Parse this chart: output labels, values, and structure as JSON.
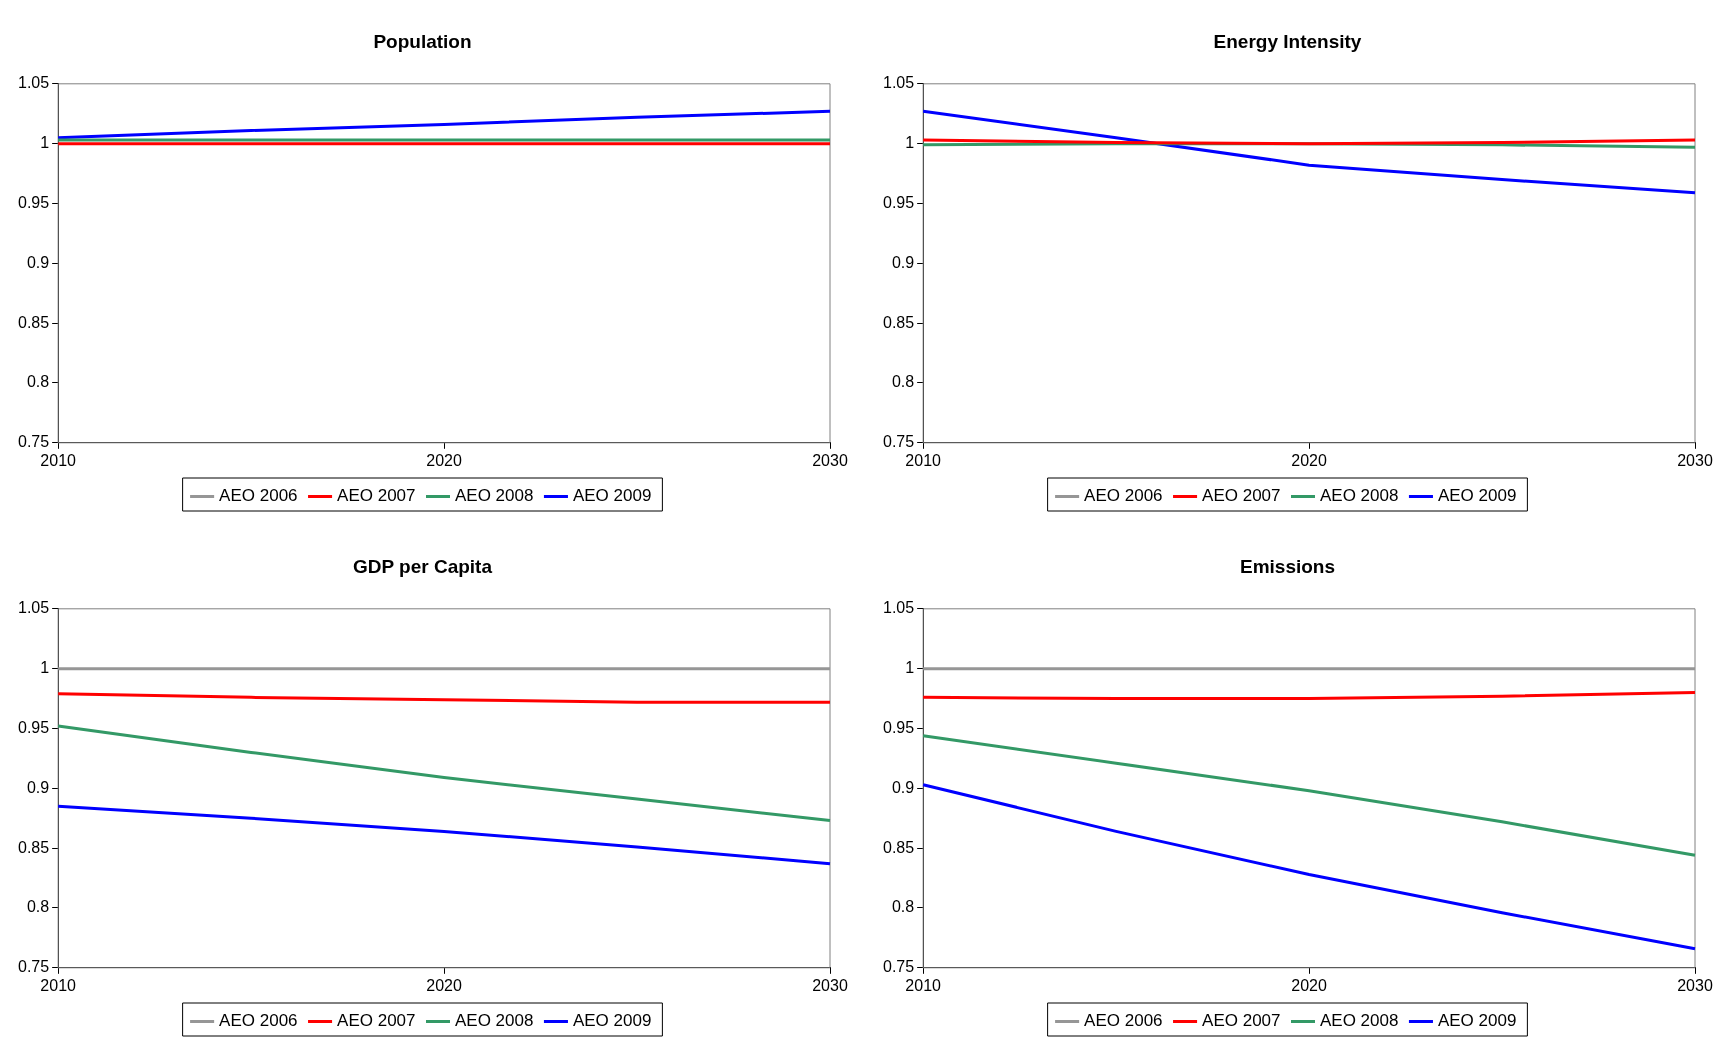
{
  "chart_data": [
    {
      "type": "line",
      "title": "Population",
      "x": [
        2010,
        2015,
        2020,
        2025,
        2030
      ],
      "xlim": [
        2010,
        2030
      ],
      "xticks": [
        2010,
        2020,
        2030
      ],
      "ylim": [
        0.75,
        1.05
      ],
      "yticks": [
        0.75,
        0.8,
        0.85,
        0.9,
        0.95,
        1,
        1.05
      ],
      "legend": "bottom",
      "series": [
        {
          "name": "AEO 2006",
          "color": "#969696",
          "values": [
            null,
            null,
            null,
            null,
            null
          ]
        },
        {
          "name": "AEO 2007",
          "color": "#ff0000",
          "values": [
            1,
            1,
            1,
            1,
            1
          ]
        },
        {
          "name": "AEO 2008",
          "color": "#339966",
          "values": [
            1.003,
            1.003,
            1.003,
            1.003,
            1.003
          ]
        },
        {
          "name": "AEO 2009",
          "color": "#0000ff",
          "values": [
            1.005,
            1.011,
            1.016,
            1.022,
            1.027
          ]
        }
      ]
    },
    {
      "type": "line",
      "title": "Energy Intensity",
      "x": [
        2010,
        2015,
        2020,
        2025,
        2030
      ],
      "xlim": [
        2010,
        2030
      ],
      "xticks": [
        2010,
        2020,
        2030
      ],
      "ylim": [
        0.75,
        1.05
      ],
      "yticks": [
        0.75,
        0.8,
        0.85,
        0.9,
        0.95,
        1,
        1.05
      ],
      "legend": "bottom",
      "series": [
        {
          "name": "AEO 2006",
          "color": "#969696",
          "values": [
            null,
            null,
            null,
            null,
            null
          ]
        },
        {
          "name": "AEO 2007",
          "color": "#ff0000",
          "values": [
            1.003,
            1.001,
            1,
            1.001,
            1.003
          ]
        },
        {
          "name": "AEO 2008",
          "color": "#339966",
          "values": [
            0.999,
            1,
            1,
            0.999,
            0.997
          ]
        },
        {
          "name": "AEO 2009",
          "color": "#0000ff",
          "values": [
            1.027,
            1.005,
            0.982,
            0.97,
            0.959
          ]
        }
      ]
    },
    {
      "type": "line",
      "title": "GDP per Capita",
      "x": [
        2010,
        2015,
        2020,
        2025,
        2030
      ],
      "xlim": [
        2010,
        2030
      ],
      "xticks": [
        2010,
        2020,
        2030
      ],
      "ylim": [
        0.75,
        1.05
      ],
      "yticks": [
        0.75,
        0.8,
        0.85,
        0.9,
        0.95,
        1,
        1.05
      ],
      "legend": "bottom",
      "series": [
        {
          "name": "AEO 2006",
          "color": "#969696",
          "values": [
            1,
            1,
            1,
            1,
            1
          ]
        },
        {
          "name": "AEO 2007",
          "color": "#ff0000",
          "values": [
            0.979,
            0.976,
            0.974,
            0.972,
            0.972
          ]
        },
        {
          "name": "AEO 2008",
          "color": "#339966",
          "values": [
            0.952,
            0.93,
            0.909,
            0.891,
            0.873
          ]
        },
        {
          "name": "AEO 2009",
          "color": "#0000ff",
          "values": [
            0.885,
            0.875,
            0.864,
            0.851,
            0.837
          ]
        }
      ]
    },
    {
      "type": "line",
      "title": "Emissions",
      "x": [
        2010,
        2015,
        2020,
        2025,
        2030
      ],
      "xlim": [
        2010,
        2030
      ],
      "xticks": [
        2010,
        2020,
        2030
      ],
      "ylim": [
        0.75,
        1.05
      ],
      "yticks": [
        0.75,
        0.8,
        0.85,
        0.9,
        0.95,
        1,
        1.05
      ],
      "legend": "bottom",
      "series": [
        {
          "name": "AEO 2006",
          "color": "#969696",
          "values": [
            1,
            1,
            1,
            1,
            1
          ]
        },
        {
          "name": "AEO 2007",
          "color": "#ff0000",
          "values": [
            0.976,
            0.975,
            0.975,
            0.977,
            0.98
          ]
        },
        {
          "name": "AEO 2008",
          "color": "#339966",
          "values": [
            0.944,
            0.921,
            0.898,
            0.872,
            0.844
          ]
        },
        {
          "name": "AEO 2009",
          "color": "#0000ff",
          "values": [
            0.903,
            0.864,
            0.828,
            0.796,
            0.766
          ]
        }
      ]
    }
  ]
}
